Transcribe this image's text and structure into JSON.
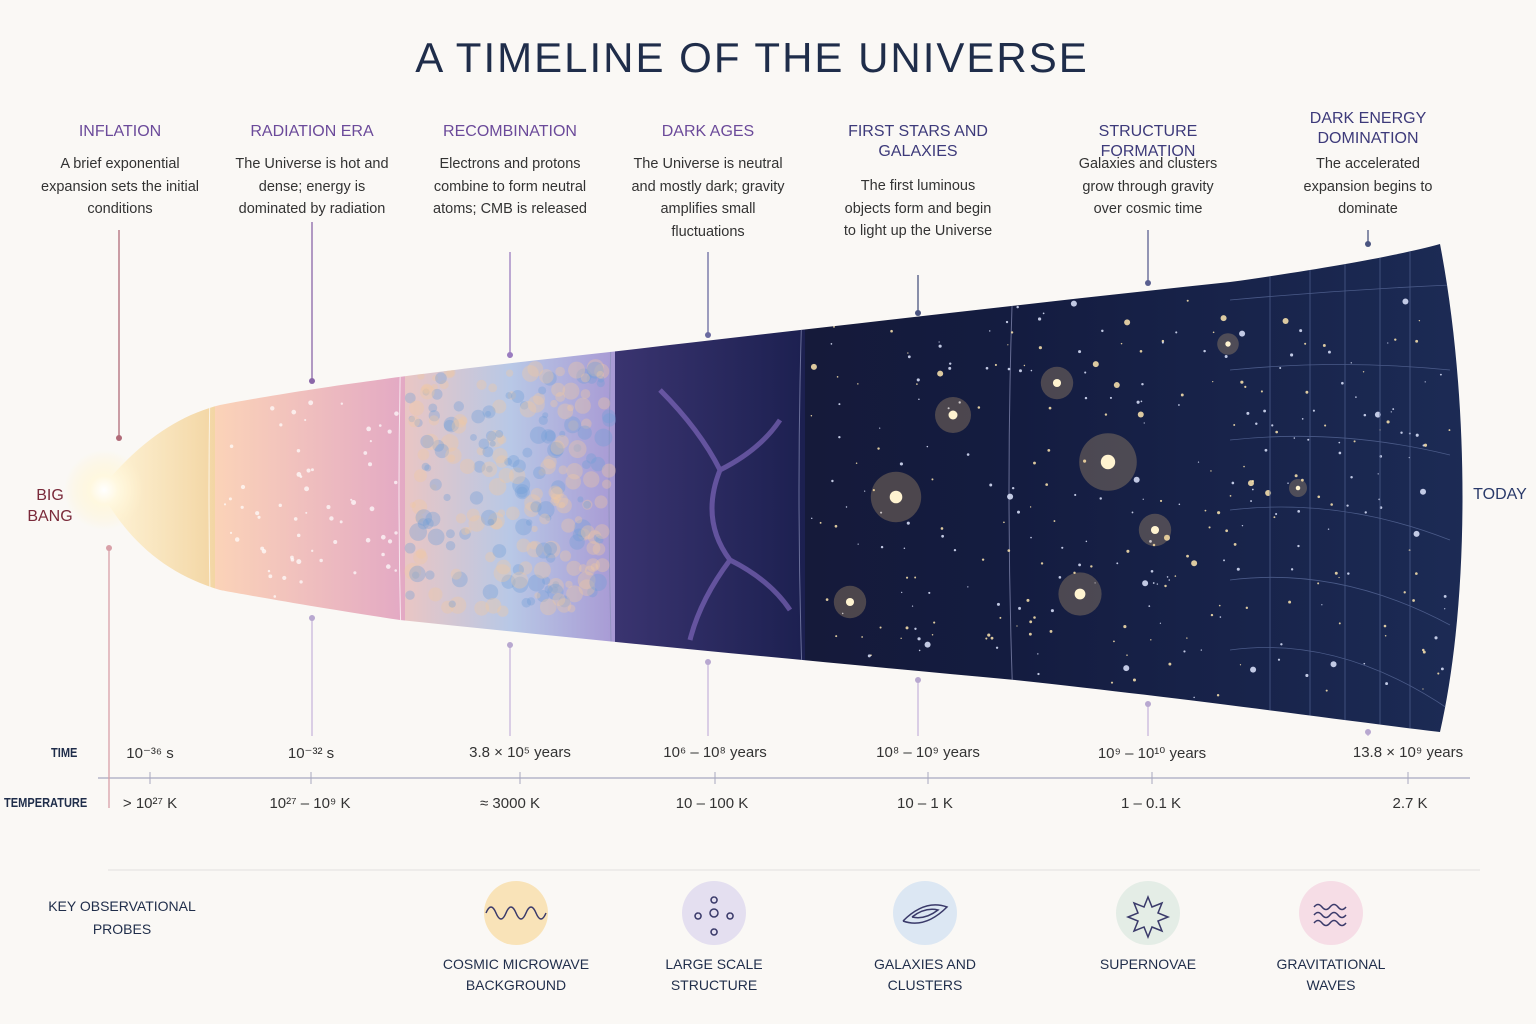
{
  "title": "A TIMELINE OF THE UNIVERSE",
  "start_label": "BIG BANG",
  "end_label": "TODAY",
  "eras": [
    {
      "name": "INFLATION",
      "description": "A brief exponential expansion sets the initial conditions"
    },
    {
      "name": "RADIATION ERA",
      "description": "The Universe is hot and dense; energy is dominated by radiation"
    },
    {
      "name": "RECOMBINATION",
      "description": "Electrons and protons combine to form neutral atoms; CMB is released"
    },
    {
      "name": "DARK AGES",
      "description": "The Universe is neutral and mostly dark; gravity amplifies small fluctuations"
    },
    {
      "name": "FIRST STARS AND GALAXIES",
      "description": "The first luminous objects form and begin to light up the Universe"
    },
    {
      "name": "STRUCTURE FORMATION",
      "description": "Galaxies and clusters grow through gravity over cosmic time"
    },
    {
      "name": "DARK ENERGY DOMINATION",
      "description": "The accelerated expansion begins to dominate"
    }
  ],
  "time_label": "TIME",
  "temperature_label": "TEMPERATURE",
  "times": [
    "10⁻³⁶ s",
    "10⁻³² s",
    "3.8 × 10⁵ years",
    "10⁶ – 10⁸ years",
    "10⁸ – 10⁹ years",
    "10⁹ – 10¹⁰ years",
    "13.8 × 10⁹ years"
  ],
  "temperatures": [
    "> 10²⁷ K",
    "10²⁷ – 10⁹ K",
    "≈ 3000 K",
    "10 – 100 K",
    "10 – 1 K",
    "1 – 0.1 K",
    "2.7 K"
  ],
  "probes_label": "KEY OBSERVATIONAL PROBES",
  "probes": [
    "COSMIC MICROWAVE BACKGROUND",
    "LARGE SCALE STRUCTURE",
    "GALAXIES AND CLUSTERS",
    "SUPERNOVAE",
    "GRAVITATIONAL WAVES"
  ]
}
